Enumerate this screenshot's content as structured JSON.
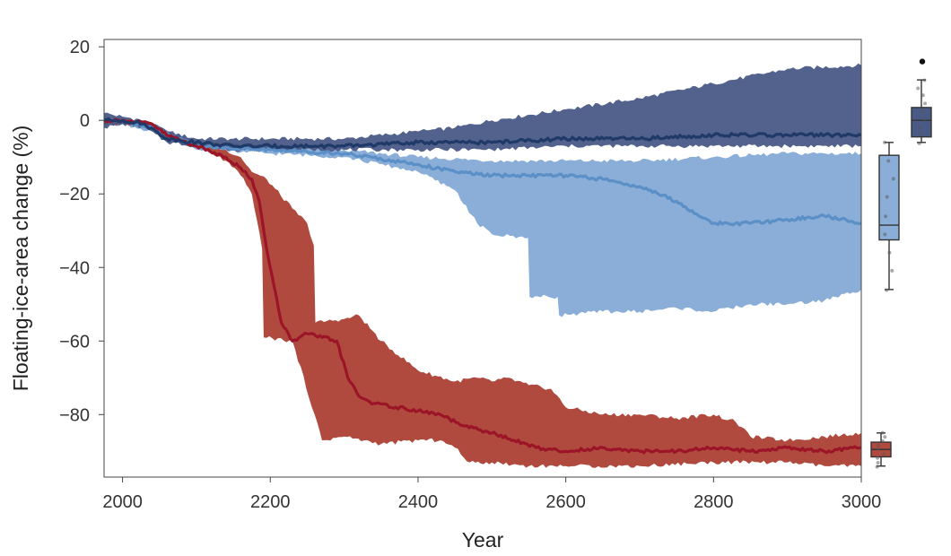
{
  "chart_data": {
    "type": "area",
    "xlabel": "Year",
    "ylabel": "Floating-ice-area change (%)",
    "xlim": [
      1975,
      3000
    ],
    "ylim": [
      -97,
      22
    ],
    "x_ticks": [
      2000,
      2200,
      2400,
      2600,
      2800,
      3000
    ],
    "y_ticks": [
      20,
      0,
      -20,
      -40,
      -60,
      -80
    ],
    "grid": false,
    "legend": "none",
    "series": [
      {
        "color": "#4a5a86",
        "line_color": "#1f3a68",
        "median": [
          [
            1975,
            0
          ],
          [
            2000,
            0
          ],
          [
            2030,
            -1
          ],
          [
            2060,
            -5
          ],
          [
            2100,
            -6
          ],
          [
            2150,
            -7
          ],
          [
            2200,
            -7
          ],
          [
            2300,
            -7
          ],
          [
            2400,
            -6
          ],
          [
            2500,
            -6
          ],
          [
            2600,
            -5
          ],
          [
            2700,
            -5
          ],
          [
            2800,
            -4
          ],
          [
            2900,
            -4
          ],
          [
            3000,
            -4
          ]
        ],
        "upper": [
          [
            1975,
            2
          ],
          [
            2000,
            1
          ],
          [
            2030,
            0
          ],
          [
            2060,
            -3
          ],
          [
            2100,
            -5
          ],
          [
            2150,
            -5
          ],
          [
            2200,
            -5
          ],
          [
            2300,
            -5
          ],
          [
            2400,
            -3
          ],
          [
            2450,
            -2
          ],
          [
            2500,
            0
          ],
          [
            2600,
            3
          ],
          [
            2700,
            6
          ],
          [
            2800,
            10
          ],
          [
            2900,
            14
          ],
          [
            3000,
            15
          ]
        ],
        "lower": [
          [
            1975,
            -2
          ],
          [
            2000,
            -1
          ],
          [
            2030,
            -2
          ],
          [
            2060,
            -6
          ],
          [
            2100,
            -7
          ],
          [
            2150,
            -8
          ],
          [
            2200,
            -8
          ],
          [
            2300,
            -8
          ],
          [
            2400,
            -8
          ],
          [
            2500,
            -8
          ],
          [
            2600,
            -7
          ],
          [
            2700,
            -7
          ],
          [
            2800,
            -7
          ],
          [
            2900,
            -7
          ],
          [
            3000,
            -7
          ]
        ],
        "boxplot": {
          "min": -6,
          "q1": -4.5,
          "median": 0,
          "q3": 3.5,
          "max": 11,
          "outliers": [
            16
          ]
        }
      },
      {
        "color": "#8aaed7",
        "line_color": "#5b8fc7",
        "median": [
          [
            1975,
            0
          ],
          [
            2000,
            0
          ],
          [
            2040,
            -2
          ],
          [
            2100,
            -7
          ],
          [
            2200,
            -8
          ],
          [
            2300,
            -9
          ],
          [
            2400,
            -12
          ],
          [
            2450,
            -14
          ],
          [
            2500,
            -15
          ],
          [
            2550,
            -15
          ],
          [
            2600,
            -15
          ],
          [
            2650,
            -16
          ],
          [
            2700,
            -18
          ],
          [
            2750,
            -22
          ],
          [
            2780,
            -26
          ],
          [
            2800,
            -28
          ],
          [
            2850,
            -28
          ],
          [
            2900,
            -27
          ],
          [
            2950,
            -26
          ],
          [
            3000,
            -28
          ]
        ],
        "upper": [
          [
            1975,
            1
          ],
          [
            2000,
            0
          ],
          [
            2040,
            -1
          ],
          [
            2100,
            -6
          ],
          [
            2200,
            -7
          ],
          [
            2300,
            -8
          ],
          [
            2400,
            -10
          ],
          [
            2500,
            -11
          ],
          [
            2600,
            -11
          ],
          [
            2700,
            -11
          ],
          [
            2800,
            -10
          ],
          [
            2900,
            -9
          ],
          [
            3000,
            -9
          ]
        ],
        "lower": [
          [
            1975,
            -1
          ],
          [
            2000,
            -1
          ],
          [
            2040,
            -3
          ],
          [
            2100,
            -8
          ],
          [
            2200,
            -9
          ],
          [
            2300,
            -10
          ],
          [
            2400,
            -14
          ],
          [
            2450,
            -19
          ],
          [
            2480,
            -28
          ],
          [
            2500,
            -31
          ],
          [
            2549,
            -32
          ],
          [
            2551,
            -48
          ],
          [
            2589,
            -48
          ],
          [
            2591,
            -53
          ],
          [
            2650,
            -52
          ],
          [
            2700,
            -52
          ],
          [
            2750,
            -51
          ],
          [
            2800,
            -52
          ],
          [
            2850,
            -50
          ],
          [
            2900,
            -50
          ],
          [
            2950,
            -49
          ],
          [
            3000,
            -46
          ]
        ],
        "boxplot": {
          "min": -46,
          "q1": -32.5,
          "median": -28.5,
          "q3": -9.5,
          "max": -6,
          "outliers": []
        }
      },
      {
        "color": "#b04a3e",
        "line_color": "#9c1428",
        "median": [
          [
            1975,
            0
          ],
          [
            2000,
            0
          ],
          [
            2040,
            -1
          ],
          [
            2060,
            -4
          ],
          [
            2100,
            -7
          ],
          [
            2140,
            -10
          ],
          [
            2160,
            -13
          ],
          [
            2175,
            -16
          ],
          [
            2185,
            -22
          ],
          [
            2195,
            -35
          ],
          [
            2205,
            -45
          ],
          [
            2215,
            -55
          ],
          [
            2230,
            -60
          ],
          [
            2250,
            -58
          ],
          [
            2270,
            -59
          ],
          [
            2290,
            -60
          ],
          [
            2305,
            -70
          ],
          [
            2320,
            -75
          ],
          [
            2340,
            -77
          ],
          [
            2370,
            -78
          ],
          [
            2400,
            -79
          ],
          [
            2430,
            -80
          ],
          [
            2460,
            -83
          ],
          [
            2500,
            -85
          ],
          [
            2530,
            -87
          ],
          [
            2560,
            -89
          ],
          [
            2600,
            -90
          ],
          [
            2650,
            -89
          ],
          [
            2700,
            -90
          ],
          [
            2750,
            -90
          ],
          [
            2800,
            -89
          ],
          [
            2850,
            -90
          ],
          [
            2900,
            -89
          ],
          [
            2950,
            -90
          ],
          [
            3000,
            -89
          ]
        ],
        "upper": [
          [
            1975,
            1
          ],
          [
            2000,
            0
          ],
          [
            2040,
            -1
          ],
          [
            2060,
            -3
          ],
          [
            2100,
            -7
          ],
          [
            2140,
            -8
          ],
          [
            2160,
            -10
          ],
          [
            2175,
            -14
          ],
          [
            2195,
            -16
          ],
          [
            2230,
            -24
          ],
          [
            2250,
            -28
          ],
          [
            2259,
            -34
          ],
          [
            2261,
            -55
          ],
          [
            2300,
            -54
          ],
          [
            2320,
            -53
          ],
          [
            2350,
            -60
          ],
          [
            2400,
            -68
          ],
          [
            2450,
            -71
          ],
          [
            2480,
            -70
          ],
          [
            2500,
            -71
          ],
          [
            2520,
            -70
          ],
          [
            2550,
            -72
          ],
          [
            2580,
            -73
          ],
          [
            2600,
            -78
          ],
          [
            2650,
            -80
          ],
          [
            2700,
            -80
          ],
          [
            2750,
            -81
          ],
          [
            2800,
            -80
          ],
          [
            2830,
            -82
          ],
          [
            2850,
            -86
          ],
          [
            2900,
            -87
          ],
          [
            2950,
            -86
          ],
          [
            3000,
            -85
          ]
        ],
        "lower": [
          [
            1975,
            -1
          ],
          [
            2000,
            -1
          ],
          [
            2040,
            -2
          ],
          [
            2060,
            -5
          ],
          [
            2100,
            -7
          ],
          [
            2140,
            -11
          ],
          [
            2160,
            -15
          ],
          [
            2175,
            -20
          ],
          [
            2189,
            -35
          ],
          [
            2191,
            -59
          ],
          [
            2230,
            -60
          ],
          [
            2260,
            -80
          ],
          [
            2270,
            -87
          ],
          [
            2300,
            -86
          ],
          [
            2350,
            -88
          ],
          [
            2400,
            -87
          ],
          [
            2430,
            -87
          ],
          [
            2450,
            -89
          ],
          [
            2470,
            -93
          ],
          [
            2500,
            -93
          ],
          [
            2550,
            -94
          ],
          [
            2600,
            -94
          ],
          [
            2700,
            -94
          ],
          [
            2800,
            -93
          ],
          [
            2900,
            -93
          ],
          [
            2950,
            -94
          ],
          [
            3000,
            -94
          ]
        ],
        "boxplot": {
          "min": -94,
          "q1": -91.5,
          "median": -89.5,
          "q3": -87.5,
          "max": -85,
          "outliers": []
        }
      }
    ]
  }
}
